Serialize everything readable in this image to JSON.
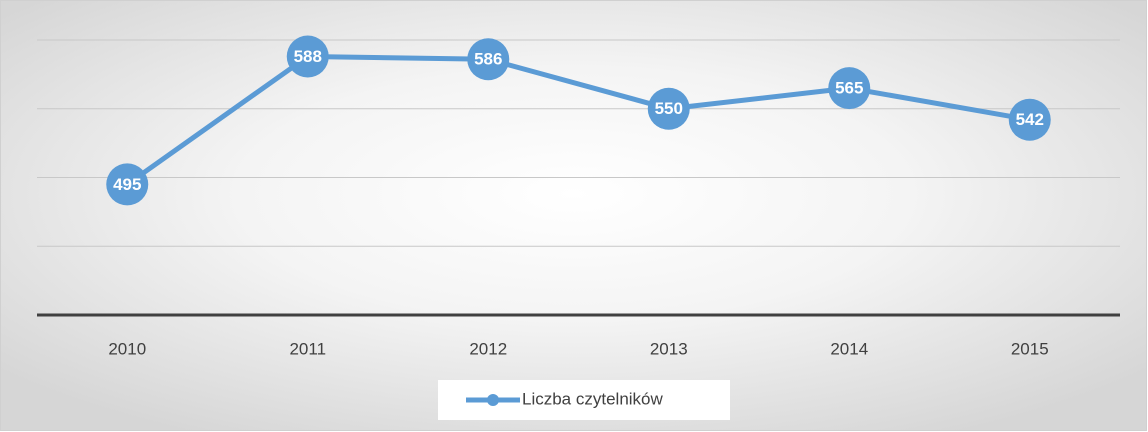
{
  "chart_data": {
    "type": "line",
    "categories": [
      "2010",
      "2011",
      "2012",
      "2013",
      "2014",
      "2015"
    ],
    "series": [
      {
        "name": "Liczba czytelników",
        "color": "#5b9bd5",
        "values": [
          495,
          588,
          586,
          550,
          565,
          542
        ]
      }
    ],
    "ylim": [
      400,
      600
    ],
    "yticks": [
      400,
      450,
      500,
      550,
      600
    ],
    "grid": true,
    "legend": "bottom"
  }
}
